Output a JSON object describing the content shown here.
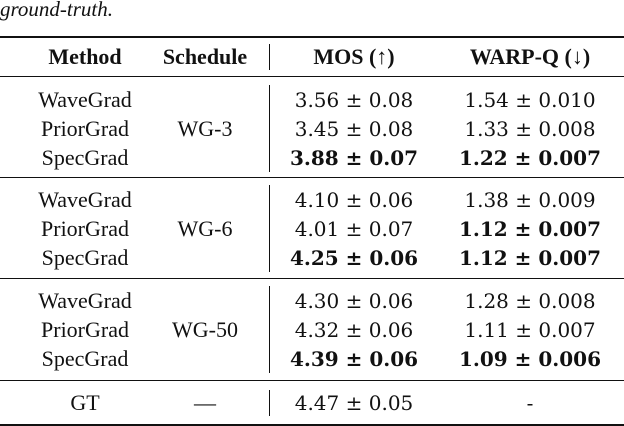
{
  "caption_tail": "ground-truth.",
  "headers": {
    "method": "Method",
    "schedule": "Schedule",
    "mos": "MOS (↑)",
    "warpq": "WARP-Q (↓)"
  },
  "groups": [
    {
      "schedule": "WG-3",
      "rows": [
        {
          "method": "WaveGrad",
          "mos": "3.56 ± 0.08",
          "warpq": "1.54 ± 0.010",
          "mos_best": false,
          "warpq_best": false
        },
        {
          "method": "PriorGrad",
          "mos": "3.45 ± 0.08",
          "warpq": "1.33 ± 0.008",
          "mos_best": false,
          "warpq_best": false
        },
        {
          "method": "SpecGrad",
          "mos": "3.88 ± 0.07",
          "warpq": "1.22 ± 0.007",
          "mos_best": true,
          "warpq_best": true
        }
      ]
    },
    {
      "schedule": "WG-6",
      "rows": [
        {
          "method": "WaveGrad",
          "mos": "4.10 ± 0.06",
          "warpq": "1.38 ± 0.009",
          "mos_best": false,
          "warpq_best": false
        },
        {
          "method": "PriorGrad",
          "mos": "4.01 ± 0.07",
          "warpq": "1.12 ± 0.007",
          "mos_best": false,
          "warpq_best": true
        },
        {
          "method": "SpecGrad",
          "mos": "4.25 ± 0.06",
          "warpq": "1.12 ± 0.007",
          "mos_best": true,
          "warpq_best": true
        }
      ]
    },
    {
      "schedule": "WG-50",
      "rows": [
        {
          "method": "WaveGrad",
          "mos": "4.30 ± 0.06",
          "warpq": "1.28 ± 0.008",
          "mos_best": false,
          "warpq_best": false
        },
        {
          "method": "PriorGrad",
          "mos": "4.32 ± 0.06",
          "warpq": "1.11 ± 0.007",
          "mos_best": false,
          "warpq_best": false
        },
        {
          "method": "SpecGrad",
          "mos": "4.39 ± 0.06",
          "warpq": "1.09 ± 0.006",
          "mos_best": true,
          "warpq_best": true
        }
      ]
    }
  ],
  "gt_row": {
    "method": "GT",
    "schedule": "—",
    "mos": "4.47 ± 0.05",
    "warpq": "-"
  }
}
